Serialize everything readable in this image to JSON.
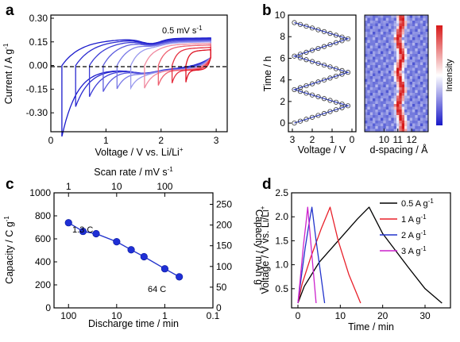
{
  "panels": {
    "a": "a",
    "b": "b",
    "c": "c",
    "d": "d"
  },
  "chart_data": [
    {
      "panel": "a",
      "type": "line",
      "xlabel": "Voltage / V vs. Li/Li",
      "xlabel_sup": "+",
      "ylabel": "Current / A g",
      "ylabel_sup": "-1",
      "xlim": [
        0,
        3.2
      ],
      "ylim": [
        -0.42,
        0.32
      ],
      "xticks": [
        "0",
        "1",
        "2",
        "3"
      ],
      "yticks": [
        "-0.30",
        "-0.15",
        "0.00",
        "0.15",
        "0.30"
      ],
      "annotation": "0.5 mV s",
      "annotation_sup": "-1",
      "zero_line": true,
      "series": [
        {
          "cutoff": 0.2,
          "plateau": 0.165,
          "color": "#1a1acc"
        },
        {
          "cutoff": 0.45,
          "plateau": 0.16,
          "color": "#2a2ad0"
        },
        {
          "cutoff": 0.7,
          "plateau": 0.155,
          "color": "#3c3cd6"
        },
        {
          "cutoff": 0.95,
          "plateau": 0.15,
          "color": "#5a5ade"
        },
        {
          "cutoff": 1.2,
          "plateau": 0.145,
          "color": "#7878e6"
        },
        {
          "cutoff": 1.45,
          "plateau": 0.14,
          "color": "#9a9aee"
        },
        {
          "cutoff": 1.7,
          "plateau": 0.13,
          "color": "#f08aa0"
        },
        {
          "cutoff": 1.95,
          "plateau": 0.12,
          "color": "#ee6070"
        },
        {
          "cutoff": 2.2,
          "plateau": 0.105,
          "color": "#e63040"
        },
        {
          "cutoff": 2.45,
          "plateau": 0.09,
          "color": "#dd1020"
        }
      ]
    },
    {
      "panel": "b",
      "type": "line",
      "xlabel": "Voltage / V",
      "ylabel": "Time / h",
      "xlim": [
        3.2,
        -0.2
      ],
      "ylim": [
        -0.8,
        10
      ],
      "xticks": [
        "3",
        "2",
        "1",
        "0"
      ],
      "yticks": [
        "0",
        "2",
        "4",
        "6",
        "8",
        "10"
      ],
      "turning_points": [
        {
          "t": 0.0,
          "v": 2.9
        },
        {
          "t": 1.6,
          "v": 0.2
        },
        {
          "t": 3.1,
          "v": 2.9
        },
        {
          "t": 4.7,
          "v": 0.2
        },
        {
          "t": 6.2,
          "v": 2.9
        },
        {
          "t": 7.8,
          "v": 0.2
        },
        {
          "t": 9.3,
          "v": 2.9
        }
      ]
    },
    {
      "panel": "b-heatmap",
      "type": "heatmap",
      "xlabel": "d-spacing / Å",
      "xlim": [
        8.6,
        13.2
      ],
      "xticks": [
        "10",
        "11",
        "12"
      ],
      "colorbar_label": "Intensity",
      "peak_d_spacing": [
        {
          "t": 0.0,
          "d": 11.35
        },
        {
          "t": 1.6,
          "d": 11.0
        },
        {
          "t": 3.1,
          "d": 11.35
        },
        {
          "t": 4.7,
          "d": 11.0
        },
        {
          "t": 6.2,
          "d": 11.35
        },
        {
          "t": 7.8,
          "d": 11.0
        },
        {
          "t": 9.3,
          "d": 11.35
        },
        {
          "t": 10.0,
          "d": 11.2
        }
      ]
    },
    {
      "panel": "c",
      "type": "scatter",
      "xlabel": "Discharge time / min",
      "xlabel_top": "Scan rate / mV s",
      "xlabel_top_sup": "-1",
      "ylabel": "Capacity / C g",
      "ylabel_sup": "-1",
      "ylabel_right": "Capacity / mAh g",
      "ylabel_right_sup": "-1",
      "x_log": true,
      "x_reversed": true,
      "xlim": [
        200,
        0.1
      ],
      "ylim": [
        0,
        1000
      ],
      "xticks": [
        "100",
        "10",
        "1",
        "0.1"
      ],
      "xticks_top": [
        "1",
        "10",
        "100"
      ],
      "yticks": [
        "0",
        "200",
        "400",
        "600",
        "800",
        "1000"
      ],
      "yticks_right": [
        "0",
        "50",
        "100",
        "150",
        "200",
        "250"
      ],
      "annotations": [
        "1.3 C",
        "64 C"
      ],
      "x": [
        100,
        50,
        26.7,
        10,
        5,
        2.7,
        1,
        0.5
      ],
      "y": [
        740,
        665,
        645,
        575,
        505,
        445,
        340,
        270
      ]
    },
    {
      "panel": "d",
      "type": "line",
      "xlabel": "Time / min",
      "ylabel": "Voltage / V vs. Li/Li",
      "ylabel_sup": "+",
      "xlim": [
        -1.5,
        36
      ],
      "ylim": [
        0.1,
        2.5
      ],
      "xticks": [
        "0",
        "10",
        "20",
        "30"
      ],
      "yticks": [
        "0.5",
        "1.0",
        "1.5",
        "2.0",
        "2.5"
      ],
      "series": [
        {
          "name": "0.5 A g",
          "name_sup": "-1",
          "color": "#000000",
          "x": [
            0,
            1.5,
            5,
            10,
            14,
            16.8,
            16.8,
            20,
            26,
            30,
            34
          ],
          "y": [
            0.2,
            0.55,
            1.05,
            1.55,
            1.95,
            2.2,
            2.2,
            1.65,
            0.95,
            0.5,
            0.2
          ]
        },
        {
          "name": "1 A g",
          "name_sup": "-1",
          "color": "#e8202a",
          "x": [
            0,
            1,
            3,
            5.5,
            7.6,
            7.6,
            9.5,
            12,
            14.8
          ],
          "y": [
            0.2,
            0.6,
            1.15,
            1.75,
            2.2,
            2.2,
            1.5,
            0.8,
            0.2
          ]
        },
        {
          "name": "2 A g",
          "name_sup": "-1",
          "color": "#2233cc",
          "x": [
            0,
            0.8,
            1.7,
            2.8,
            3.3,
            3.3,
            4.3,
            5.3,
            6.3
          ],
          "y": [
            0.2,
            0.75,
            1.35,
            1.95,
            2.2,
            2.2,
            1.5,
            0.85,
            0.2
          ]
        },
        {
          "name": "3 A g",
          "name_sup": "-1",
          "color": "#cc22cc",
          "x": [
            0,
            0.6,
            1.3,
            2.0,
            2.3,
            2.3,
            3.0,
            3.7,
            4.3
          ],
          "y": [
            0.2,
            0.75,
            1.4,
            1.95,
            2.2,
            2.2,
            1.5,
            0.8,
            0.2
          ]
        }
      ]
    }
  ]
}
